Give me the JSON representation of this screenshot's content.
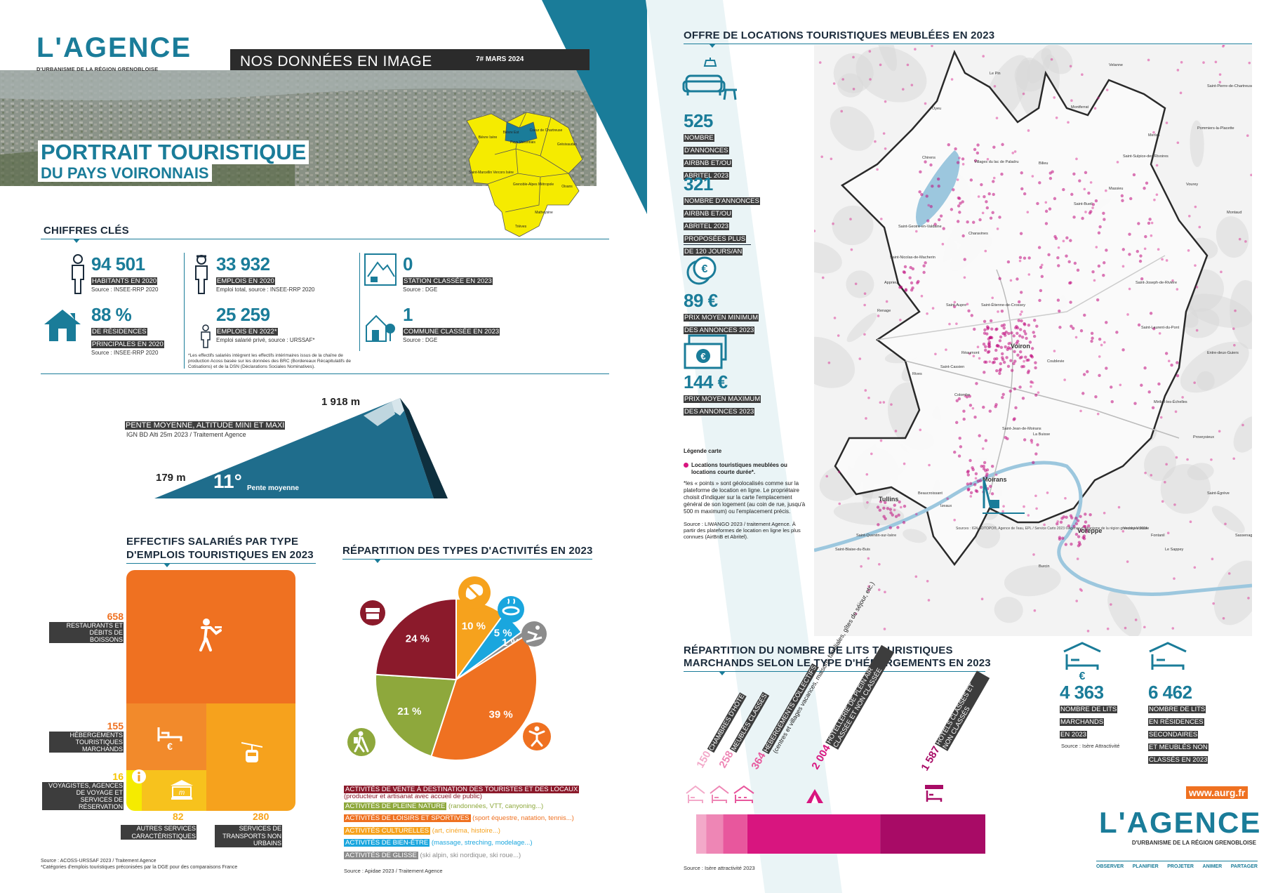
{
  "colors": {
    "teal": "#1a7c99",
    "dark_teal": "#1e5d7a",
    "yellow": "#f5eb00",
    "orange": "#ef7121",
    "maroon": "#8b1a2b",
    "green": "#8ea83c",
    "amber": "#f6a21d",
    "sky": "#1aa6de",
    "grey": "#8c8c8c",
    "magenta": "#c00a7c"
  },
  "header": {
    "logo_main": "L'AGENCE",
    "logo_sub": "D'URBANISME DE LA RÉGION GRENOBLOISE",
    "banner": "NOS DONNÉES EN IMAGE",
    "issue": "7# MARS 2024",
    "title_line1": "PORTRAIT TOURISTIQUE",
    "title_line2": "DU PAYS VOIRONNAIS"
  },
  "locator_map": {
    "labels": [
      "Saint-Marcellin Vercors Isère",
      "Bièvre Isère",
      "Bièvre Est",
      "Coeur de Chartreuse",
      "Pays Voironnais",
      "Grésivaudan",
      "Grenoble-Alpes Métropole",
      "Oisans",
      "Matheysine",
      "Trièves"
    ]
  },
  "key_figures": {
    "heading": "CHIFFRES CLÉS",
    "items": [
      {
        "value": "94 501",
        "label": "HABITANTS EN 2020",
        "source": "Source : INSEE-RRP 2020",
        "icon": "person-icon"
      },
      {
        "value": "88 %",
        "label_line1": "DE RÉSIDENCES",
        "label_line2": "PRINCIPALES EN 2020",
        "source": "Source : INSEE-RRP 2020",
        "icon": "house-icon"
      },
      {
        "value": "33 932",
        "label": "EMPLOIS EN 2020",
        "source": "Emploi total, source : INSEE-RRP 2020",
        "icon": "worker-icon"
      },
      {
        "value": "25 259",
        "label": "EMPLOIS EN 2022*",
        "source": "Emploi salarié privé, source : URSSAF*",
        "icon": "worker-small-icon"
      },
      {
        "value": "0",
        "label": "STATION CLASSÉE EN 2023",
        "source": "Source : DGE",
        "icon": "mountain-station-icon"
      },
      {
        "value": "1",
        "label": "COMMUNE CLASSÉE EN 2023",
        "source": "Source : DGE",
        "icon": "village-icon"
      }
    ],
    "footnote": "*Les effectifs salariés intègrent les effectifs intérimaires issus de la chaîne de production Acoss basée sur les données des BRC (Bordereaux Récapitulatifs de Cotisations) et de la DSN (Déclarations Sociales Nominatives)."
  },
  "slope": {
    "label": "PENTE MOYENNE, ALTITUDE MINI ET MAXI",
    "source": "IGN BD Alti 25m 2023 / Traitement Agence",
    "max": "1 918 m",
    "min": "179 m",
    "mean": "11°",
    "mean_label": "Pente moyenne"
  },
  "employment": {
    "heading_line1": "EFFECTIFS SALARIÉS PAR TYPE",
    "heading_line2": "D'EMPLOIS TOURISTIQUES EN 2023",
    "items": [
      {
        "value": "658",
        "label": "RESTAURANTS ET DÉBITS DE BOISSONS"
      },
      {
        "value": "155",
        "label": "HÉBERGEMENTS TOURISTIQUES MARCHANDS"
      },
      {
        "value": "16",
        "label": "VOYAGISTES, AGENCES DE VOYAGE ET SERVICES DE RÉSERVATION"
      },
      {
        "value": "82",
        "label": "AUTRES SERVICES CARACTÉRISTIQUES"
      },
      {
        "value": "280",
        "label": "SERVICES DE TRANSPORTS NON URBAINS"
      }
    ],
    "source_line1": "Source : ACOSS-URSSAF 2023 / Traitement Agence",
    "source_line2": "*Catégories d'emplois touristiques préconisées par la DGE pour des comparaisons France"
  },
  "chart_data": {
    "type": "pie",
    "title": "RÉPARTITION DES TYPES D'ACTIVITÉS EN 2023",
    "categories": [
      "ACTIVITÉS DE VENTE À DESTINATION DES TOURISTES ET DES LOCAUX",
      "ACTIVITÉS DE PLEINE NATURE",
      "ACTIVITÉS DE LOISIRS ET SPORTIVES",
      "ACTIVITÉS CULTURELLES",
      "ACTIVITÉS DE BIEN-ÊTRE",
      "ACTIVITÉS DE GLISSE"
    ],
    "values": [
      24,
      21,
      39,
      10,
      5,
      1
    ],
    "labels": [
      "24 %",
      "21 %",
      "39 %",
      "10 %",
      "5 %",
      "1 %"
    ],
    "details": [
      "(producteur et artisanat avec accueil de public)",
      "(randonnées, VTT, canyoning...)",
      "(sport équestre, natation, tennis...)",
      "(art, cinéma, histoire...)",
      "(massage, streching, modelage...)",
      "(ski alpin, ski nordique, ski roue...)"
    ],
    "colors": [
      "#8b1a2b",
      "#8ea83c",
      "#ef7121",
      "#f6a21d",
      "#1aa6de",
      "#8c8c8c"
    ],
    "source": "Source : Apidae 2023 / Traitement Agence"
  },
  "rentals": {
    "heading": "OFFRE DE LOCATIONS TOURISTIQUES MEUBLÉES EN 2023",
    "stats": [
      {
        "value": "525",
        "lines": [
          "NOMBRE",
          "D'ANNONCES",
          "AIRBNB ET/OU",
          "ABRITEL 2023"
        ]
      },
      {
        "value": "321",
        "lines": [
          "NOMBRE D'ANNONCES",
          "AIRBNB ET/OU",
          "ABRITEL 2023",
          "PROPOSÉES PLUS",
          "DE 120 JOURS/AN"
        ]
      },
      {
        "value": "89 €",
        "lines": [
          "PRIX MOYEN MINIMUM",
          "DES ANNONCES 2023"
        ]
      },
      {
        "value": "144 €",
        "lines": [
          "PRIX MOYEN MAXIMUM",
          "DES ANNONCES 2023"
        ]
      }
    ],
    "legend_title": "Légende carte",
    "legend_item": "Locations touristiques meublées ou locations courte durée*.",
    "legend_note": "*les « points » sont géolocalisés comme sur la plateforme de location en ligne. Le propriétaire choisit d'indiquer sur la carte l'emplacement général de son logement (au coin de rue, jusqu'à 500 m maximum) ou l'emplacement précis.",
    "legend_source": "Source : LIWANGO 2023 / traitement Agence. À partir des plateformes de location en ligne les plus connues (AirBnB et Abritel)."
  },
  "map": {
    "towns": [
      "Voiron",
      "Moirans",
      "Tullins",
      "Voreppe",
      "Coublevie",
      "Saint-Jean-de-Moirans",
      "Charavines",
      "Apprieu",
      "Rives",
      "Réaumont",
      "Saint-Cassien",
      "La Buisse",
      "Saint-Étienne-de-Crossey",
      "Saint-Aupre",
      "Saint-Nicolas-de-Macherin",
      "Saint-Geoire-en-Valdaine",
      "Villages du lac de Paladru",
      "Chirens",
      "Oyeu",
      "Le Pin",
      "Bilieu",
      "Montferrat",
      "Saint-Bueil",
      "Velanne",
      "Merlas",
      "Saint-Sulpice-des-Rivoires",
      "Massieu",
      "Saint-Joseph-de-Rivière",
      "Saint-Laurent-du-Pont",
      "Miribel-les-Échelles",
      "Entre-deux-Guiers",
      "Saint-Pierre-de-Chartreuse",
      "Pommiers-la-Placette",
      "Montaud",
      "Vourey",
      "Renage",
      "Beaucroissant",
      "Izeaux",
      "Colombe",
      "Burcin",
      "Saint-Blaise-du-Buis",
      "Saint-Quentin-sur-Isère",
      "Veurey-Voroize",
      "Fontanil",
      "Le Sappey",
      "Saint-Égrève",
      "Proveysieux",
      "Sassenage"
    ],
    "sources": "Sources : IGN-BDTOPO®, Agence de l'eau, EPL / Service Carto 2023 ©Agence d'urbanisme de la région grenobloise 2024"
  },
  "beds": {
    "heading_line1": "RÉPARTITION DU NOMBRE DE LITS TOURISTIQUES",
    "heading_line2": "MARCHANDS SELON LE TYPE D'HÉBERGEMENTS EN 2023",
    "items": [
      {
        "value": "150",
        "label": "CHAMBRES D'HÔTE",
        "color": "#f3a9c9"
      },
      {
        "value": "258",
        "label": "MEUBLÉS CLASSÉS",
        "color": "#ee86b5"
      },
      {
        "value": "364",
        "label": "HÉBERGEMENTS COLLECTIFS",
        "detail": "(centres et villages vacances, maisons familiales, gîtes de séjour, etc.)",
        "color": "#e8579d"
      },
      {
        "value": "2 004",
        "label": "HÔTELLERIE DE PLEIN AIR CLASSÉE ET NON CLASSÉE",
        "color": "#d8157f"
      },
      {
        "value": "1 587",
        "label": "HÔTELS CLASSÉS ET NON CLASSÉS",
        "color": "#a80b66"
      }
    ],
    "source": "Source : Isère attractivité 2023",
    "stat1_value": "4 363",
    "stat1_lines": [
      "NOMBRE DE LITS",
      "MARCHANDS",
      "EN 2023"
    ],
    "stat2_value": "6 462",
    "stat2_lines": [
      "NOMBRE DE LITS",
      "EN RÉSIDENCES",
      "SECONDAIRES",
      "ET MEUBLÉS NON",
      "CLASSÉS EN 2023"
    ],
    "stat_source": "Source : Isère Attractivité"
  },
  "footer": {
    "url": "www.aurg.fr",
    "logo_main": "L'AGENCE",
    "logo_sub": "D'URBANISME DE LA RÉGION GRENOBLOISE",
    "nav": [
      "OBSERVER",
      "PLANIFIER",
      "PROJETER",
      "ANIMER",
      "PARTAGER"
    ]
  }
}
